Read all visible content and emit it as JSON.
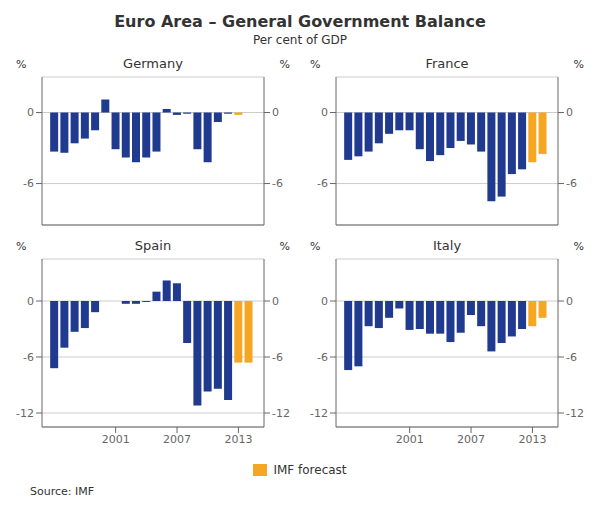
{
  "title": "Euro Area – General Government Balance",
  "subtitle": "Per cent of GDP",
  "source": "Source: IMF",
  "legend": "bottom",
  "chart_data": [
    {
      "type": "bar",
      "title": "Germany",
      "ylabel": "%",
      "y2label": "%",
      "x": [
        1995,
        1996,
        1997,
        1998,
        1999,
        2000,
        2001,
        2002,
        2003,
        2004,
        2005,
        2006,
        2007,
        2008,
        2009,
        2010,
        2011,
        2012,
        2013,
        2014
      ],
      "series": [
        {
          "color": "#1f3a8f",
          "values": [
            -3.3,
            -3.4,
            -2.6,
            -2.2,
            -1.5,
            1.1,
            -3.1,
            -3.8,
            -4.2,
            -3.8,
            -3.3,
            0.3,
            -0.2,
            -0.1,
            -3.1,
            -4.2,
            -0.8,
            -0.1,
            null,
            null
          ]
        },
        {
          "name": "IMF forecast",
          "color": "#f5a623",
          "values": [
            null,
            null,
            null,
            null,
            null,
            null,
            null,
            null,
            null,
            null,
            null,
            null,
            null,
            null,
            null,
            null,
            null,
            null,
            -0.2,
            0.0
          ]
        }
      ],
      "xlim": [
        1993.8,
        2015.5
      ],
      "xticks": [
        2001,
        2007,
        2013
      ],
      "ylim": [
        -9.5,
        3.0
      ],
      "yticks": [
        0,
        -6
      ],
      "y2lim": [
        -9.5,
        3.0
      ],
      "y2ticks": [
        0,
        -6
      ],
      "grid": true,
      "tick_labels": "y"
    },
    {
      "type": "bar",
      "title": "France",
      "ylabel": "%",
      "y2label": "%",
      "x": [
        1995,
        1996,
        1997,
        1998,
        1999,
        2000,
        2001,
        2002,
        2003,
        2004,
        2005,
        2006,
        2007,
        2008,
        2009,
        2010,
        2011,
        2012,
        2013,
        2014
      ],
      "series": [
        {
          "color": "#1f3a8f",
          "values": [
            -4.0,
            -3.7,
            -3.3,
            -2.6,
            -1.8,
            -1.5,
            -1.5,
            -3.1,
            -4.1,
            -3.6,
            -3.0,
            -2.4,
            -2.7,
            -3.3,
            -7.5,
            -7.1,
            -5.2,
            -4.8,
            null,
            null
          ]
        },
        {
          "name": "IMF forecast",
          "color": "#f5a623",
          "values": [
            null,
            null,
            null,
            null,
            null,
            null,
            null,
            null,
            null,
            null,
            null,
            null,
            null,
            null,
            null,
            null,
            null,
            null,
            -4.2,
            -3.5
          ]
        }
      ],
      "xlim": [
        1993.8,
        2015.5
      ],
      "xticks": [
        2001,
        2007,
        2013
      ],
      "ylim": [
        -9.5,
        3.0
      ],
      "yticks": [
        0,
        -6
      ],
      "y2lim": [
        -9.5,
        3.0
      ],
      "y2ticks": [
        0,
        -6
      ],
      "grid": true,
      "tick_labels": "y"
    },
    {
      "type": "bar",
      "title": "Spain",
      "ylabel": "%",
      "y2label": "%",
      "x": [
        1995,
        1996,
        1997,
        1998,
        1999,
        2000,
        2001,
        2002,
        2003,
        2004,
        2005,
        2006,
        2007,
        2008,
        2009,
        2010,
        2011,
        2012,
        2013,
        2014
      ],
      "series": [
        {
          "color": "#1f3a8f",
          "values": [
            -7.2,
            -5.0,
            -3.3,
            -2.9,
            -1.2,
            0.0,
            0.0,
            -0.3,
            -0.3,
            -0.1,
            1.0,
            2.2,
            1.9,
            -4.5,
            -11.2,
            -9.7,
            -9.4,
            -10.6,
            null,
            null
          ]
        },
        {
          "name": "IMF forecast",
          "color": "#f5a623",
          "values": [
            null,
            null,
            null,
            null,
            null,
            null,
            null,
            null,
            null,
            null,
            null,
            null,
            null,
            null,
            null,
            null,
            null,
            null,
            -6.6,
            -6.6
          ]
        }
      ],
      "xlim": [
        1993.8,
        2015.5
      ],
      "xticks": [
        2001,
        2007,
        2013
      ],
      "ylim": [
        -13.5,
        4.5
      ],
      "yticks": [
        0,
        -6,
        -12
      ],
      "y2lim": [
        -13.5,
        4.5
      ],
      "y2ticks": [
        0,
        -6,
        -12
      ],
      "grid": true
    },
    {
      "type": "bar",
      "title": "Italy",
      "ylabel": "%",
      "y2label": "%",
      "x": [
        1995,
        1996,
        1997,
        1998,
        1999,
        2000,
        2001,
        2002,
        2003,
        2004,
        2005,
        2006,
        2007,
        2008,
        2009,
        2010,
        2011,
        2012,
        2013,
        2014
      ],
      "series": [
        {
          "color": "#1f3a8f",
          "values": [
            -7.4,
            -7.0,
            -2.7,
            -2.9,
            -1.8,
            -0.8,
            -3.1,
            -3.0,
            -3.5,
            -3.5,
            -4.4,
            -3.4,
            -1.5,
            -2.7,
            -5.4,
            -4.5,
            -3.8,
            -3.0,
            null,
            null
          ]
        },
        {
          "name": "IMF forecast",
          "color": "#f5a623",
          "values": [
            null,
            null,
            null,
            null,
            null,
            null,
            null,
            null,
            null,
            null,
            null,
            null,
            null,
            null,
            null,
            null,
            null,
            null,
            -2.7,
            -1.8
          ]
        }
      ],
      "xlim": [
        1993.8,
        2015.5
      ],
      "xticks": [
        2001,
        2007,
        2013
      ],
      "ylim": [
        -13.5,
        4.5
      ],
      "yticks": [
        0,
        -6,
        -12
      ],
      "y2lim": [
        -13.5,
        4.5
      ],
      "y2ticks": [
        0,
        -6,
        -12
      ],
      "grid": true
    }
  ]
}
